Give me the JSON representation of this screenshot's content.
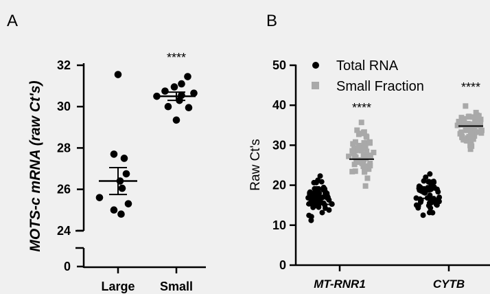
{
  "chart_data": [
    {
      "panel": "A",
      "type": "scatter",
      "ylabel": "MOTS-c mRNA  (raw Ct's)",
      "categories": [
        "Large",
        "Small"
      ],
      "y_ticks": [
        "0",
        "24",
        "26",
        "28",
        "30",
        "32"
      ],
      "ylim": [
        24,
        32
      ],
      "y_break": true,
      "significance": "****",
      "series": [
        {
          "values": [
            31.55,
            27.7,
            27.5,
            26.75,
            26.4,
            26.05,
            25.6,
            25.3,
            25.0,
            24.8
          ],
          "mean": 26.4,
          "sem_low": 25.75,
          "sem_high": 27.05
        },
        {
          "values": [
            31.45,
            31.1,
            30.95,
            30.75,
            30.65,
            30.55,
            30.5,
            30.3,
            30.0,
            29.95,
            29.35
          ],
          "mean": 30.5,
          "sem_low": 30.3,
          "sem_high": 30.7
        }
      ]
    },
    {
      "panel": "B",
      "type": "scatter",
      "ylabel": "Raw Ct's",
      "categories": [
        "MT-RNR1",
        "CYTB"
      ],
      "y_ticks": [
        "0",
        "10",
        "20",
        "30",
        "40",
        "50"
      ],
      "ylim": [
        0,
        50
      ],
      "legend_position": "top-left",
      "significance": [
        "****",
        "****"
      ],
      "series": [
        {
          "name": "Total RNA",
          "color": "#000000",
          "marker": "circle",
          "medians": [
            15.2,
            16.7
          ],
          "ranges": [
            [
              11.2,
              22.3
            ],
            [
              12.5,
              22.8
            ]
          ]
        },
        {
          "name": "Small Fraction",
          "color": "#a9a9a9",
          "marker": "square",
          "medians": [
            26.5,
            34.8
          ],
          "ranges": [
            [
              19.8,
              35.7
            ],
            [
              29.0,
              39.8
            ]
          ]
        }
      ]
    }
  ]
}
